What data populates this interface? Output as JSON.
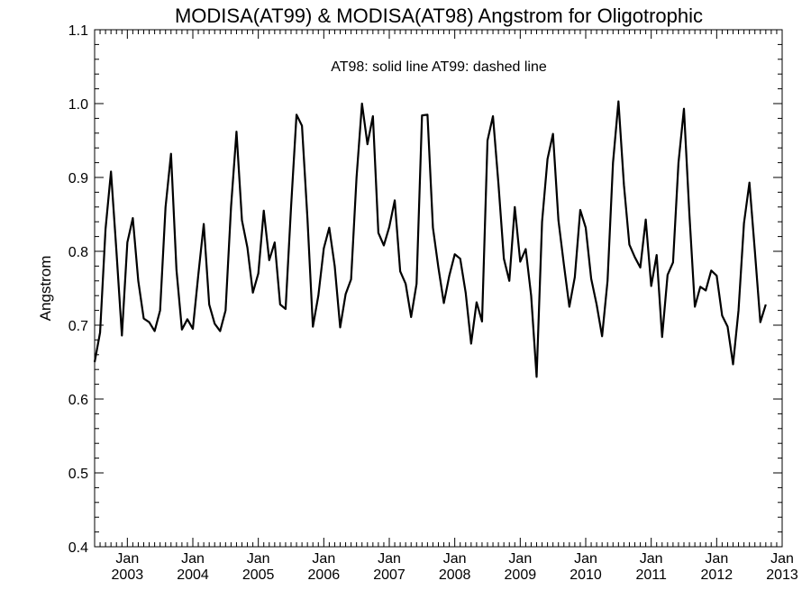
{
  "chart_data": {
    "type": "line",
    "title": "MODISA(AT99) & MODISA(AT98)  Angstrom for Oligotrophic",
    "annotation": "AT98: solid line   AT99: dashed line",
    "xlabel": "",
    "ylabel": "Angstrom",
    "ylim": [
      0.4,
      1.1
    ],
    "yticks": [
      0.4,
      0.5,
      0.6,
      0.7,
      0.8,
      0.9,
      1.0,
      1.1
    ],
    "yticklabels": [
      "0.4",
      "0.5",
      "0.6",
      "0.7",
      "0.8",
      "0.9",
      "1.0",
      "1.1"
    ],
    "xlim": [
      "2002-07",
      "2013-01"
    ],
    "xticks": [
      {
        "month": "Jan",
        "year": "2003",
        "date": "2003-01"
      },
      {
        "month": "Jan",
        "year": "2004",
        "date": "2004-01"
      },
      {
        "month": "Jan",
        "year": "2005",
        "date": "2005-01"
      },
      {
        "month": "Jan",
        "year": "2006",
        "date": "2006-01"
      },
      {
        "month": "Jan",
        "year": "2007",
        "date": "2007-01"
      },
      {
        "month": "Jan",
        "year": "2008",
        "date": "2008-01"
      },
      {
        "month": "Jan",
        "year": "2009",
        "date": "2009-01"
      },
      {
        "month": "Jan",
        "year": "2010",
        "date": "2010-01"
      },
      {
        "month": "Jan",
        "year": "2011",
        "date": "2011-01"
      },
      {
        "month": "Jan",
        "year": "2012",
        "date": "2012-01"
      },
      {
        "month": "Jan",
        "year": "2013",
        "date": "2013-01"
      }
    ],
    "grid": false,
    "series": [
      {
        "name": "AT98",
        "style": "solid",
        "color": "#000000",
        "start": "2002-07",
        "values": [
          0.65,
          0.69,
          0.83,
          0.908,
          0.8,
          0.686,
          0.812,
          0.845,
          0.76,
          0.709,
          0.704,
          0.692,
          0.72,
          0.86,
          0.932,
          0.775,
          0.694,
          0.708,
          0.695,
          0.768,
          0.837,
          0.728,
          0.702,
          0.692,
          0.72,
          0.86,
          0.962,
          0.842,
          0.805,
          0.744,
          0.77,
          0.855,
          0.788,
          0.812,
          0.728,
          0.722,
          0.86,
          0.985,
          0.97,
          0.845,
          0.698,
          0.74,
          0.804,
          0.832,
          0.78,
          0.697,
          0.742,
          0.762,
          0.9,
          1.0,
          0.945,
          0.983,
          0.825,
          0.808,
          0.833,
          0.869,
          0.773,
          0.756,
          0.711,
          0.756,
          0.984,
          0.985,
          0.832,
          0.778,
          0.73,
          0.767,
          0.796,
          0.79,
          0.744,
          0.675,
          0.731,
          0.705,
          0.95,
          0.983,
          0.892,
          0.79,
          0.76,
          0.86,
          0.786,
          0.803,
          0.74,
          0.63,
          0.84,
          0.925,
          0.959,
          0.842,
          0.782,
          0.725,
          0.765,
          0.856,
          0.832,
          0.763,
          0.728,
          0.685,
          0.76,
          0.92,
          1.003,
          0.89,
          0.809,
          0.792,
          0.778,
          0.843,
          0.753,
          0.795,
          0.684,
          0.768,
          0.785,
          0.92,
          0.993,
          0.85,
          0.725,
          0.752,
          0.747,
          0.774,
          0.767,
          0.713,
          0.698,
          0.647,
          0.72,
          0.838,
          0.893,
          0.8,
          0.704,
          0.728
        ]
      }
    ]
  }
}
